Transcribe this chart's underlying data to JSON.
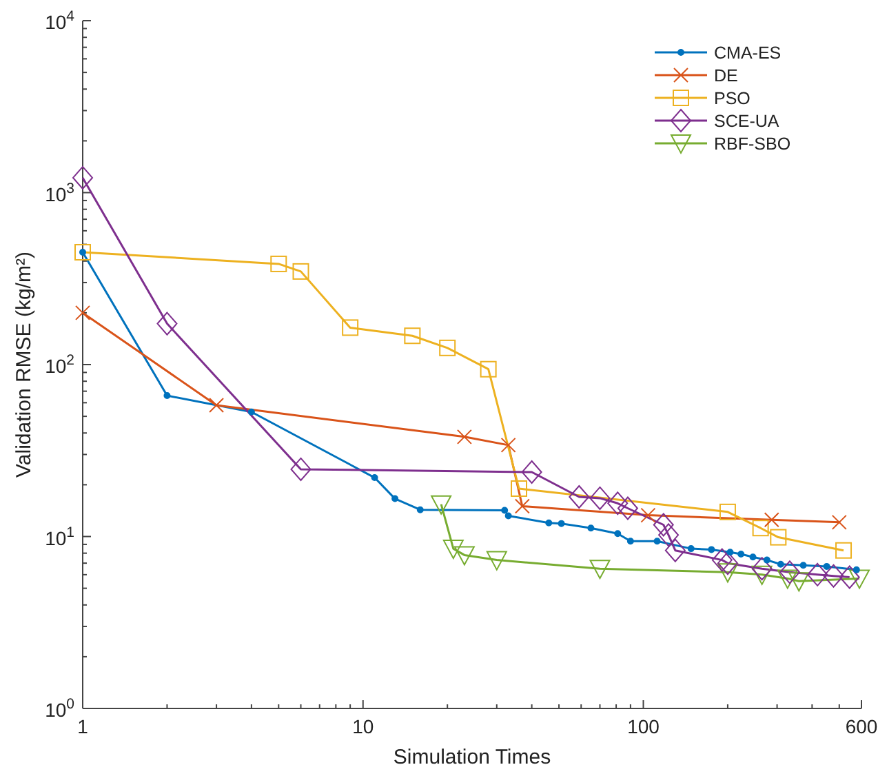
{
  "chart_data": {
    "type": "line",
    "xlabel": "Simulation Times",
    "ylabel": "Validation RMSE (kg/m²)",
    "log": "xy",
    "grid": false,
    "legend": "top right",
    "xlim": [
      1,
      600
    ],
    "xticks": [
      1,
      {
        "value": 2,
        "label": null
      },
      {
        "value": 3,
        "label": null
      },
      {
        "value": 4,
        "label": null
      },
      {
        "value": 5,
        "label": null
      },
      {
        "value": 6,
        "label": null
      },
      {
        "value": 7,
        "label": null
      },
      {
        "value": 8,
        "label": null
      },
      {
        "value": 9,
        "label": null
      },
      10,
      {
        "value": 20,
        "label": null
      },
      {
        "value": 30,
        "label": null
      },
      {
        "value": 40,
        "label": null
      },
      {
        "value": 50,
        "label": null
      },
      {
        "value": 60,
        "label": null
      },
      {
        "value": 70,
        "label": null
      },
      {
        "value": 80,
        "label": null
      },
      {
        "value": 90,
        "label": null
      },
      100,
      {
        "value": 200,
        "label": null
      },
      {
        "value": 300,
        "label": null
      },
      {
        "value": 400,
        "label": null
      },
      {
        "value": 500,
        "label": null
      },
      600
    ],
    "ylim": [
      1,
      10000
    ],
    "yticks": [
      {
        "value": 1,
        "label": "10$^{0}$"
      },
      {
        "value": 2,
        "label": null
      },
      {
        "value": 3,
        "label": null
      },
      {
        "value": 4,
        "label": null
      },
      {
        "value": 5,
        "label": null
      },
      {
        "value": 6,
        "label": null
      },
      {
        "value": 7,
        "label": null
      },
      {
        "value": 8,
        "label": null
      },
      {
        "value": 9,
        "label": null
      },
      {
        "value": 10,
        "label": "10$^{1}$"
      },
      {
        "value": 20,
        "label": null
      },
      {
        "value": 30,
        "label": null
      },
      {
        "value": 40,
        "label": null
      },
      {
        "value": 50,
        "label": null
      },
      {
        "value": 60,
        "label": null
      },
      {
        "value": 70,
        "label": null
      },
      {
        "value": 80,
        "label": null
      },
      {
        "value": 90,
        "label": null
      },
      {
        "value": 100,
        "label": "10$^{2}$"
      },
      {
        "value": 200,
        "label": null
      },
      {
        "value": 300,
        "label": null
      },
      {
        "value": 400,
        "label": null
      },
      {
        "value": 500,
        "label": null
      },
      {
        "value": 600,
        "label": null
      },
      {
        "value": 700,
        "label": null
      },
      {
        "value": 800,
        "label": null
      },
      {
        "value": 900,
        "label": null
      },
      {
        "value": 1000,
        "label": "10$^{3}$"
      },
      {
        "value": 2000,
        "label": null
      },
      {
        "value": 3000,
        "label": null
      },
      {
        "value": 4000,
        "label": null
      },
      {
        "value": 5000,
        "label": null
      },
      {
        "value": 6000,
        "label": null
      },
      {
        "value": 7000,
        "label": null
      },
      {
        "value": 8000,
        "label": null
      },
      {
        "value": 9000,
        "label": null
      },
      {
        "value": 10000,
        "label": "10$^{4}$"
      }
    ],
    "series": [
      {
        "name": "CMA-ES",
        "color": "#0072bd",
        "marker": "circle",
        "x": [
          1,
          2,
          4,
          11,
          13,
          16,
          32,
          33,
          46,
          51,
          65,
          81,
          90,
          112,
          148,
          175,
          204,
          223,
          246,
          276,
          309,
          372,
          451,
          576
        ],
        "values": [
          450,
          66,
          53,
          22,
          16.6,
          14.3,
          14.2,
          13.2,
          12.0,
          11.9,
          11.2,
          10.4,
          9.4,
          9.4,
          8.5,
          8.4,
          8.1,
          7.9,
          7.6,
          7.3,
          6.9,
          6.8,
          6.7,
          6.4
        ]
      },
      {
        "name": "DE",
        "color": "#d95319",
        "marker": "cross",
        "x": [
          1,
          3,
          23,
          33,
          37,
          104,
          287,
          500
        ],
        "values": [
          200,
          58,
          38,
          34,
          15,
          13.3,
          12.5,
          12.1
        ]
      },
      {
        "name": "PSO",
        "color": "#edb120",
        "marker": "square",
        "x": [
          1,
          5,
          6,
          9,
          15,
          20,
          28,
          36,
          200,
          262,
          303,
          518
        ],
        "values": [
          450,
          385,
          348,
          164,
          147,
          125,
          94,
          19,
          13.9,
          11.2,
          9.9,
          8.3
        ]
      },
      {
        "name": "SCE-UA",
        "color": "#7e2f8e",
        "marker": "diamond",
        "x": [
          1,
          2,
          6,
          40,
          59,
          70,
          81,
          88,
          118,
          123,
          130,
          191,
          200,
          265,
          333,
          418,
          477,
          544
        ],
        "values": [
          1220,
          173,
          24.6,
          23.7,
          17,
          16.7,
          15.6,
          14.6,
          11.7,
          10.2,
          8.3,
          7.3,
          7.0,
          6.5,
          6.2,
          6.0,
          5.9,
          5.8
        ]
      },
      {
        "name": "RBF-SBO",
        "color": "#77ac30",
        "marker": "triangle",
        "x": [
          19,
          21,
          23,
          30,
          70,
          200,
          265,
          327,
          359,
          590
        ],
        "values": [
          15.4,
          8.5,
          7.8,
          7.3,
          6.5,
          6.2,
          6.0,
          5.7,
          5.5,
          5.7
        ]
      }
    ]
  }
}
